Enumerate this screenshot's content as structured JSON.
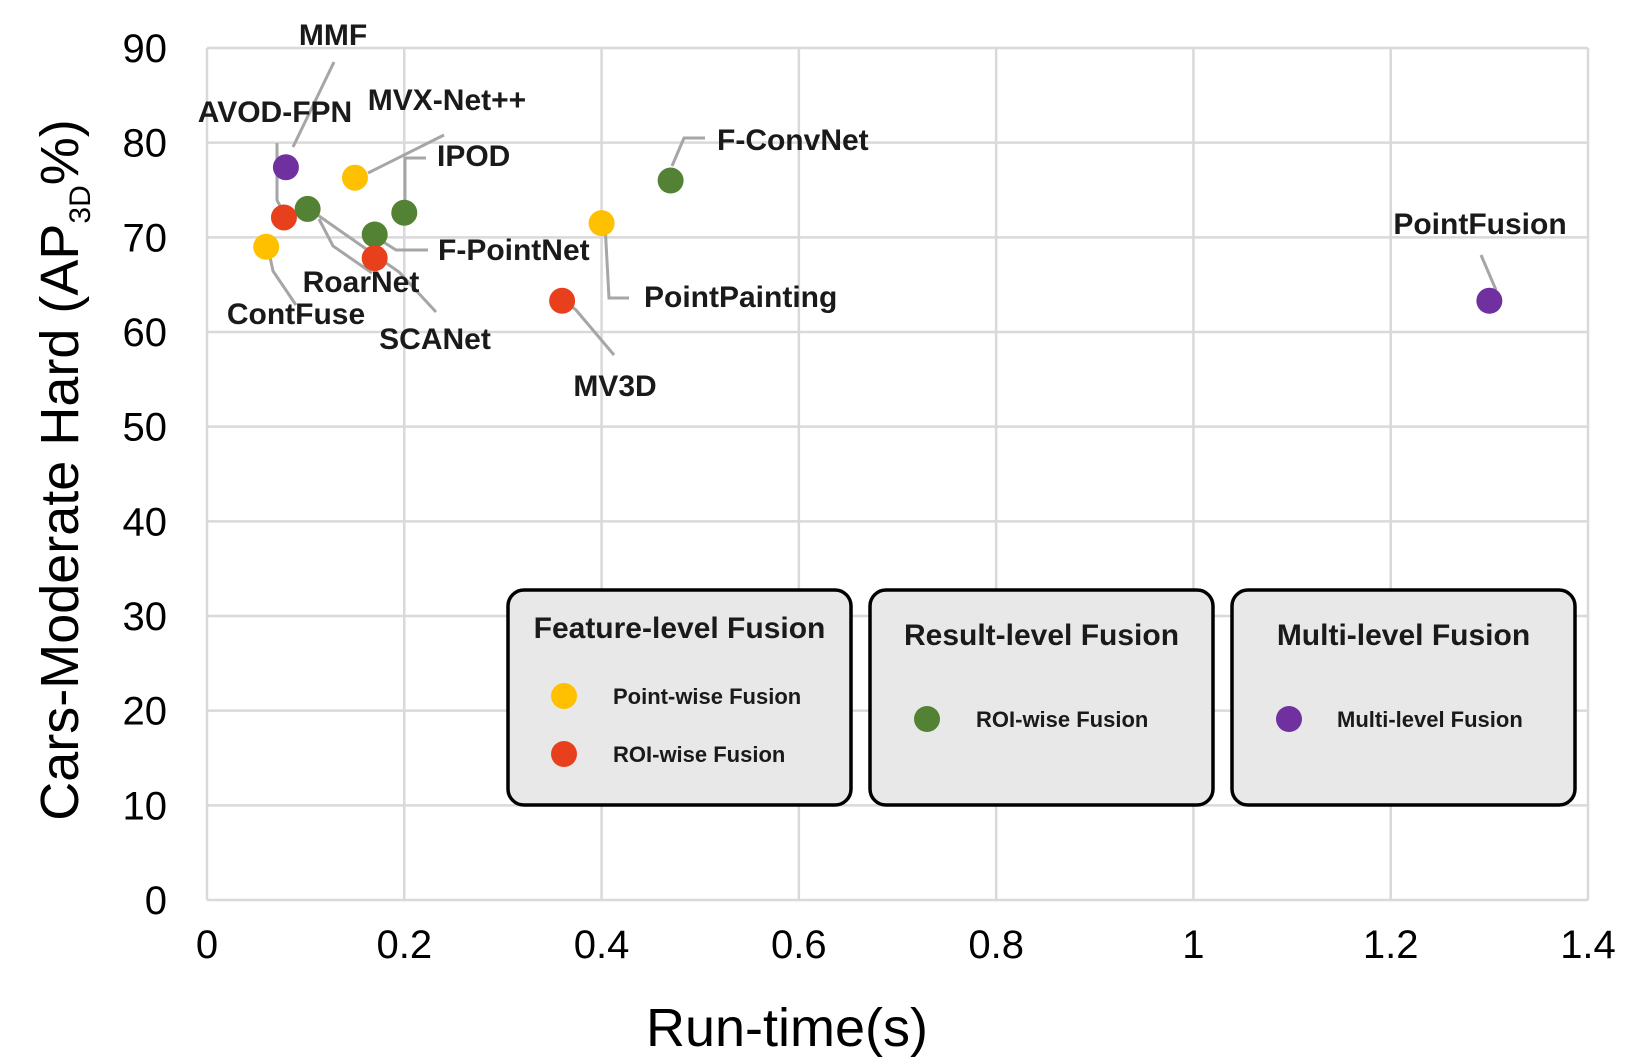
{
  "chart_data": {
    "type": "scatter",
    "xlabel": "Run-time(s)",
    "ylabel": {
      "main": "Cars-Moderate Hard (AP",
      "sub": "3D",
      "suffix": "%)"
    },
    "xlim": [
      0,
      1.4
    ],
    "ylim": [
      0,
      90
    ],
    "x_ticks": [
      "0",
      "0.2",
      "0.4",
      "0.6",
      "0.8",
      "1",
      "1.2",
      "1.4"
    ],
    "y_ticks": [
      "0",
      "10",
      "20",
      "30",
      "40",
      "50",
      "60",
      "70",
      "80",
      "90"
    ],
    "grid": true,
    "colors": {
      "point_wise": "#ffc000",
      "roi_wise_feature": "#e8401c",
      "roi_wise_result": "#548235",
      "multi_level": "#7030a0"
    },
    "points": [
      {
        "label": "MMF",
        "x": 0.08,
        "y": 77.4,
        "group": "multi_level"
      },
      {
        "label": "AVOD-FPN",
        "x": 0.078,
        "y": 72.1,
        "group": "roi_wise_feature"
      },
      {
        "label": "MVX-Net++",
        "x": 0.15,
        "y": 76.3,
        "group": "point_wise"
      },
      {
        "label": "IPOD",
        "x": 0.2,
        "y": 72.6,
        "group": "roi_wise_result"
      },
      {
        "label": "F-ConvNet",
        "x": 0.47,
        "y": 76.0,
        "group": "roi_wise_result"
      },
      {
        "label": "F-PointNet",
        "x": 0.17,
        "y": 70.3,
        "group": "roi_wise_result"
      },
      {
        "label": "RoarNet",
        "x": 0.102,
        "y": 73.0,
        "group": "roi_wise_result"
      },
      {
        "label": "ContFuse",
        "x": 0.06,
        "y": 69.0,
        "group": "point_wise"
      },
      {
        "label": "SCANet",
        "x": 0.17,
        "y": 67.8,
        "group": "roi_wise_feature"
      },
      {
        "label": "PointPainting",
        "x": 0.4,
        "y": 71.5,
        "group": "point_wise"
      },
      {
        "label": "MV3D",
        "x": 0.36,
        "y": 63.3,
        "group": "roi_wise_feature"
      },
      {
        "label": "PointFusion",
        "x": 1.3,
        "y": 63.3,
        "group": "multi_level"
      }
    ],
    "legend": [
      {
        "title": "Feature-level Fusion",
        "items": [
          {
            "label": "Point-wise Fusion",
            "group": "point_wise"
          },
          {
            "label": "ROI-wise Fusion",
            "group": "roi_wise_feature"
          }
        ]
      },
      {
        "title": "Result-level Fusion",
        "items": [
          {
            "label": "ROI-wise Fusion",
            "group": "roi_wise_result"
          }
        ]
      },
      {
        "title": "Multi-level Fusion",
        "items": [
          {
            "label": "Multi-level Fusion",
            "group": "multi_level"
          }
        ]
      }
    ]
  }
}
